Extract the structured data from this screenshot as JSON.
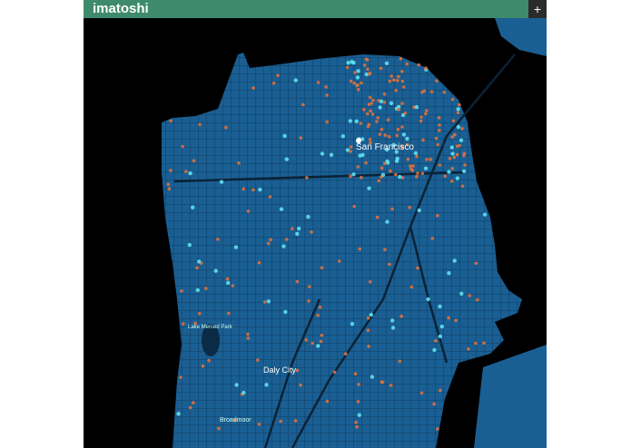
{
  "header": {
    "title": "imatoshi",
    "button": "+"
  },
  "map": {
    "labels": [
      "San Francisco",
      "Daly City",
      "Lake Merced Park",
      "Broadmoor"
    ]
  }
}
